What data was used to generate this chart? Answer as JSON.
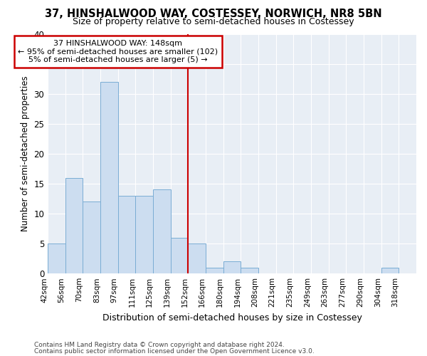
{
  "title": "37, HINSHALWOOD WAY, COSTESSEY, NORWICH, NR8 5BN",
  "subtitle": "Size of property relative to semi-detached houses in Costessey",
  "xlabel": "Distribution of semi-detached houses by size in Costessey",
  "ylabel": "Number of semi-detached properties",
  "bin_labels": [
    "42sqm",
    "56sqm",
    "70sqm",
    "83sqm",
    "97sqm",
    "111sqm",
    "125sqm",
    "139sqm",
    "152sqm",
    "166sqm",
    "180sqm",
    "194sqm",
    "208sqm",
    "221sqm",
    "235sqm",
    "249sqm",
    "263sqm",
    "277sqm",
    "290sqm",
    "304sqm",
    "318sqm"
  ],
  "bar_heights": [
    5,
    16,
    12,
    32,
    13,
    13,
    14,
    6,
    5,
    1,
    2,
    1,
    0,
    0,
    0,
    0,
    0,
    0,
    0,
    1,
    0
  ],
  "bar_color": "#ccddf0",
  "bar_edge_color": "#7aadd4",
  "bin_edges": [
    0,
    1,
    2,
    3,
    4,
    5,
    6,
    7,
    8,
    9,
    10,
    11,
    12,
    13,
    14,
    15,
    16,
    17,
    18,
    19,
    20,
    21
  ],
  "annotation_text": "37 HINSHALWOOD WAY: 148sqm\n← 95% of semi-detached houses are smaller (102)\n5% of semi-detached houses are larger (5) →",
  "annotation_box_color": "#ffffff",
  "annotation_box_edge": "#cc0000",
  "vline_color": "#cc0000",
  "vline_x": 8,
  "ylim": [
    0,
    40
  ],
  "yticks": [
    0,
    5,
    10,
    15,
    20,
    25,
    30,
    35,
    40
  ],
  "bg_color": "#e8eef5",
  "footer_line1": "Contains HM Land Registry data © Crown copyright and database right 2024.",
  "footer_line2": "Contains public sector information licensed under the Open Government Licence v3.0."
}
